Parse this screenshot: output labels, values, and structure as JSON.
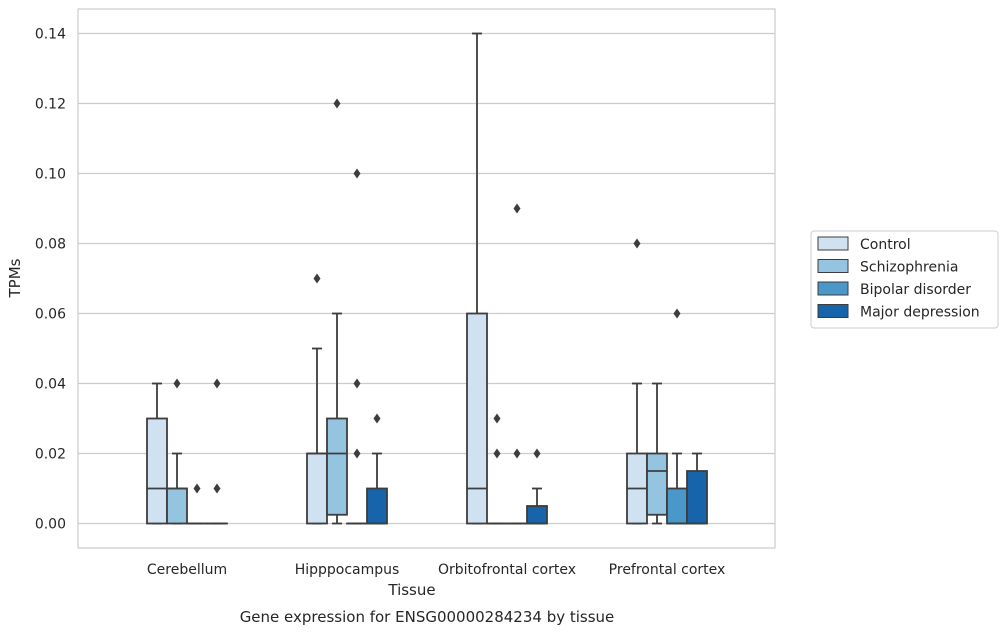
{
  "chart_data": {
    "type": "box",
    "caption": "Gene expression for ENSG00000284234 by tissue",
    "xlabel": "Tissue",
    "ylabel": "TPMs",
    "ylim": [
      -0.007,
      0.147
    ],
    "yticks": [
      "0.00",
      "0.02",
      "0.04",
      "0.06",
      "0.08",
      "0.10",
      "0.12",
      "0.14"
    ],
    "ytick_values": [
      0,
      0.02,
      0.04,
      0.06,
      0.08,
      0.1,
      0.12,
      0.14
    ],
    "categories": [
      "Cerebellum",
      "Hipppocampus",
      "Orbitofrontal cortex",
      "Prefrontal cortex"
    ],
    "grid": true,
    "legend_position": "right",
    "colors": [
      "#d0e1f2",
      "#94c4df",
      "#4a98c9",
      "#1764ab"
    ],
    "series": [
      {
        "name": "Control",
        "boxes": [
          {
            "q1": 0,
            "median": 0.01,
            "q3": 0.03,
            "whislo": 0,
            "whishi": 0.04,
            "fliers": []
          },
          {
            "q1": 0,
            "median": 0.02,
            "q3": 0.02,
            "whislo": 0,
            "whishi": 0.05,
            "fliers": [
              0.07
            ]
          },
          {
            "q1": 0,
            "median": 0.01,
            "q3": 0.06,
            "whislo": 0,
            "whishi": 0.14,
            "fliers": []
          },
          {
            "q1": 0,
            "median": 0.01,
            "q3": 0.02,
            "whislo": 0,
            "whishi": 0.04,
            "fliers": [
              0.08
            ]
          }
        ]
      },
      {
        "name": "Schizophrenia",
        "boxes": [
          {
            "q1": 0,
            "median": 0.01,
            "q3": 0.01,
            "whislo": 0,
            "whishi": 0.02,
            "fliers": [
              0.04
            ]
          },
          {
            "q1": 0.0025,
            "median": 0.02,
            "q3": 0.03,
            "whislo": 0,
            "whishi": 0.06,
            "fliers": [
              0.12
            ]
          },
          {
            "q1": 0,
            "median": 0,
            "q3": 0,
            "whislo": 0,
            "whishi": 0,
            "fliers": [
              0.02,
              0.03
            ]
          },
          {
            "q1": 0.0025,
            "median": 0.015,
            "q3": 0.02,
            "whislo": 0,
            "whishi": 0.04,
            "fliers": []
          }
        ]
      },
      {
        "name": "Bipolar disorder",
        "boxes": [
          {
            "q1": 0,
            "median": 0,
            "q3": 0,
            "whislo": 0,
            "whishi": 0,
            "fliers": [
              0.01
            ]
          },
          {
            "q1": 0,
            "median": 0,
            "q3": 0,
            "whislo": 0,
            "whishi": 0,
            "fliers": [
              0.02,
              0.04,
              0.1
            ]
          },
          {
            "q1": 0,
            "median": 0,
            "q3": 0,
            "whislo": 0,
            "whishi": 0,
            "fliers": [
              0.02,
              0.09
            ]
          },
          {
            "q1": 0,
            "median": 0,
            "q3": 0.01,
            "whislo": 0,
            "whishi": 0.02,
            "fliers": [
              0.06
            ]
          }
        ]
      },
      {
        "name": "Major depression",
        "boxes": [
          {
            "q1": 0,
            "median": 0,
            "q3": 0,
            "whislo": 0,
            "whishi": 0,
            "fliers": [
              0.01,
              0.04
            ]
          },
          {
            "q1": 0,
            "median": 0,
            "q3": 0.01,
            "whislo": 0,
            "whishi": 0.02,
            "fliers": [
              0.03
            ]
          },
          {
            "q1": 0,
            "median": 0,
            "q3": 0.005,
            "whislo": 0,
            "whishi": 0.01,
            "fliers": [
              0.02
            ]
          },
          {
            "q1": 0,
            "median": 0,
            "q3": 0.015,
            "whislo": 0,
            "whishi": 0.02,
            "fliers": []
          }
        ]
      }
    ]
  }
}
